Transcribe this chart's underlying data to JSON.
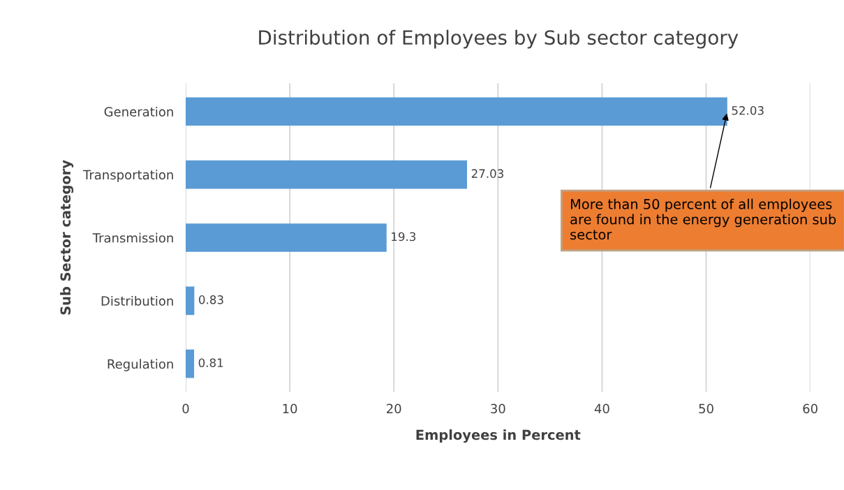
{
  "chart_data": {
    "type": "bar",
    "orientation": "horizontal",
    "title": "Distribution of Employees by Sub sector category",
    "xlabel": "Employees in Percent",
    "ylabel": "Sub Sector category",
    "categories": [
      "Generation",
      "Transportation",
      "Transmission",
      "Distribution",
      "Regulation"
    ],
    "values": [
      52.03,
      27.03,
      19.3,
      0.83,
      0.81
    ],
    "color": "#5b9bd5",
    "data_labels": true,
    "xlim": [
      0,
      60
    ],
    "xticks": [
      0,
      10,
      20,
      30,
      40,
      50,
      60
    ],
    "grid": "x",
    "annotations": [
      {
        "text": "More than 50 percent of all employees are found in the energy generation sub sector",
        "x": 52.03,
        "y": "Generation"
      }
    ]
  }
}
